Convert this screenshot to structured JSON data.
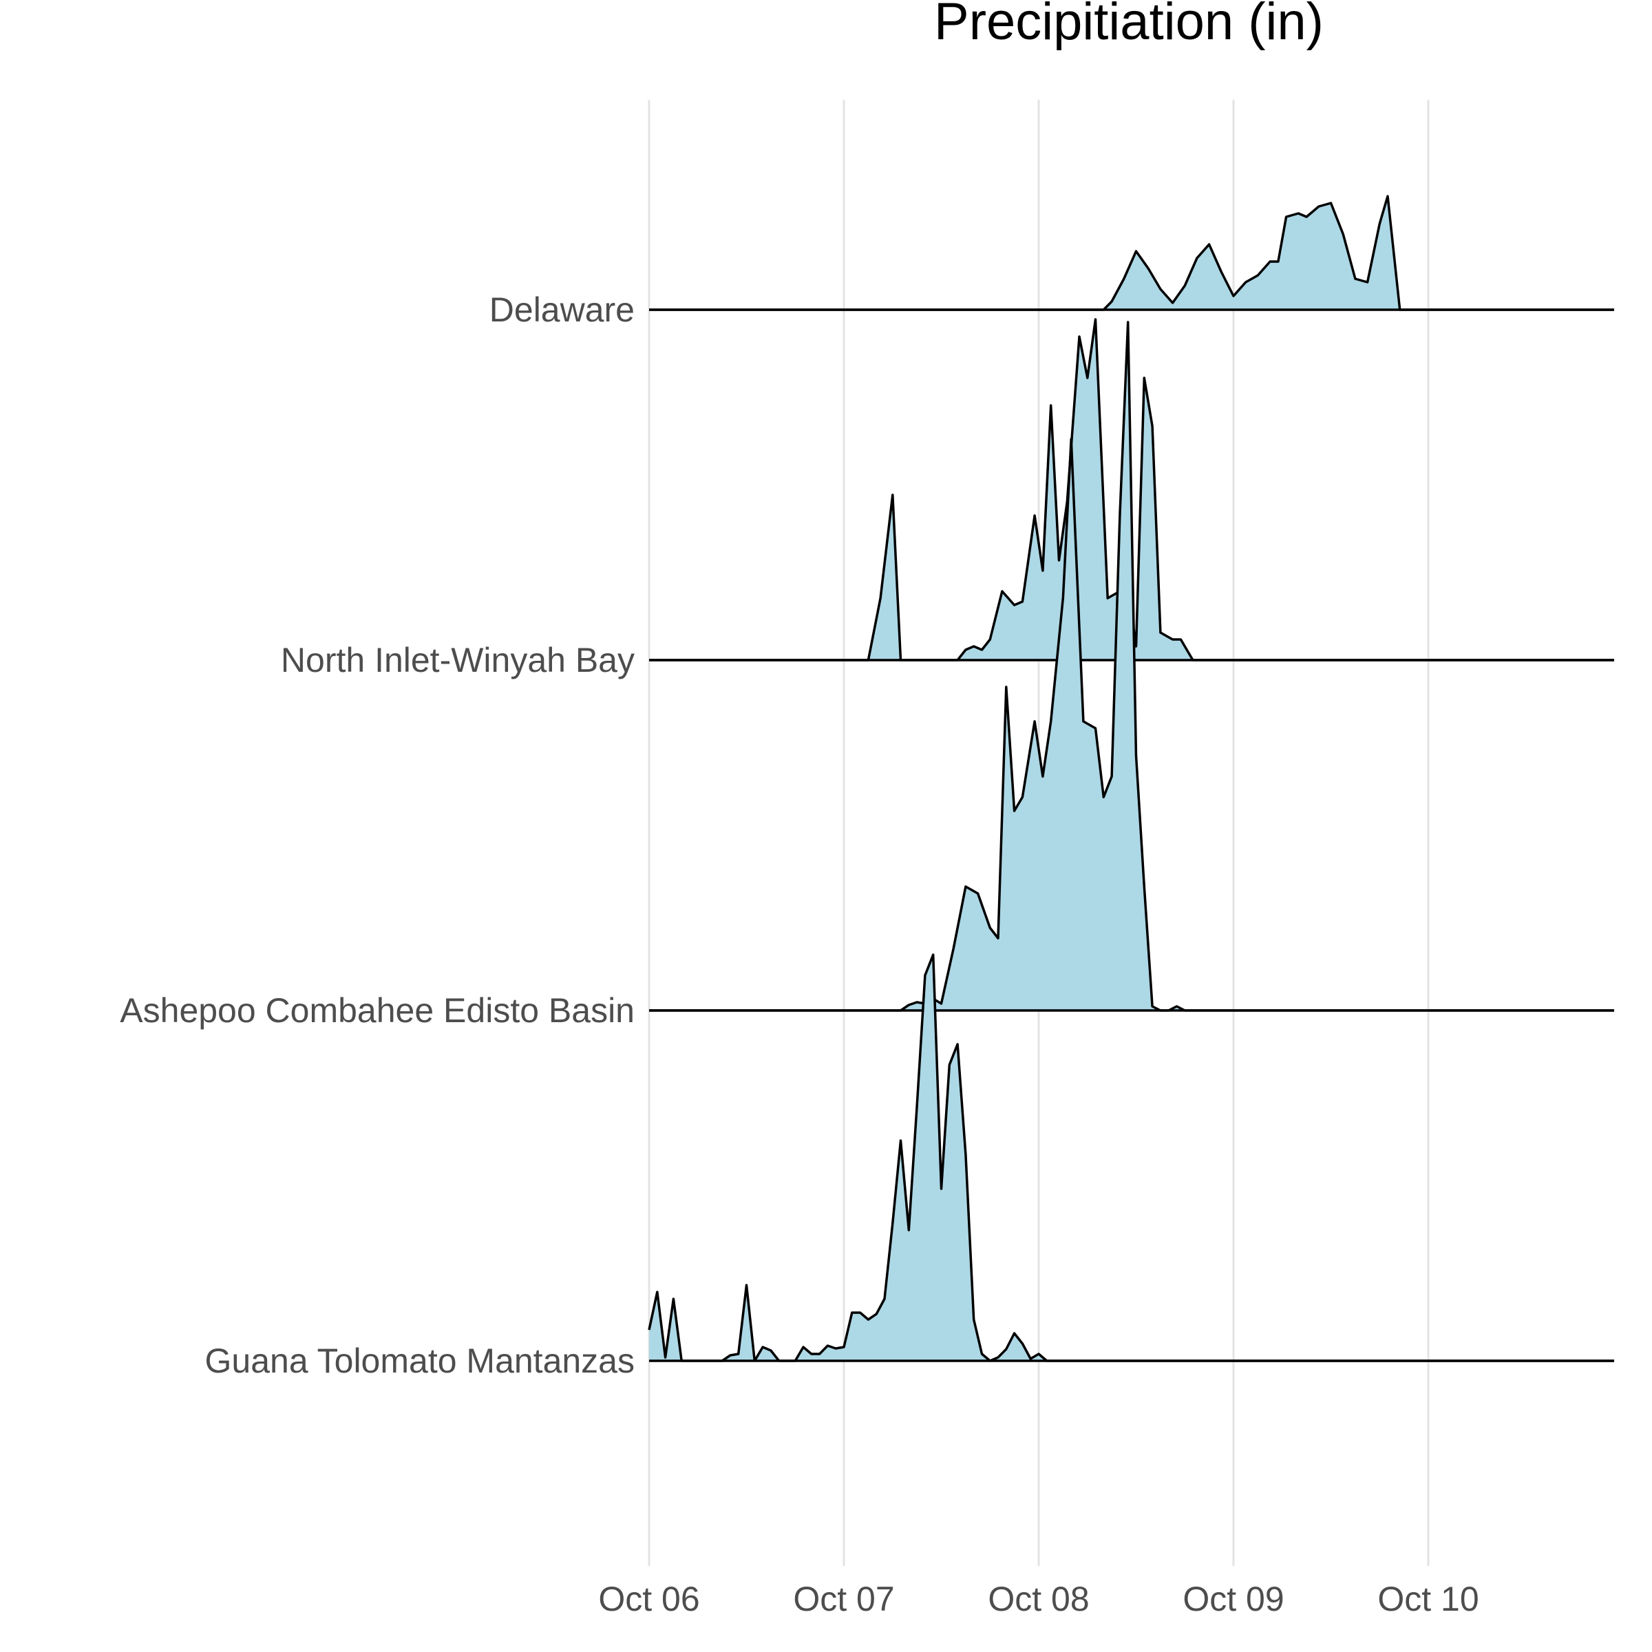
{
  "chart_data": {
    "type": "area",
    "title": "Precipitiation (in)",
    "xlabel": "",
    "ylabel": "",
    "fill_color": "#add8e6",
    "line_color": "#000000",
    "grid": "vertical",
    "x_ticks": [
      "Oct 06",
      "Oct 07",
      "Oct 08",
      "Oct 09",
      "Oct 10"
    ],
    "x_range_days": [
      "Oct 06 00:00",
      "Oct 10 23:00"
    ],
    "series": [
      {
        "name": "Delaware",
        "points": [
          [
            "Oct 06 00:00",
            0
          ],
          [
            "Oct 08 08:00",
            0
          ],
          [
            "Oct 08 09:00",
            0.012
          ],
          [
            "Oct 08 10:30",
            0.045
          ],
          [
            "Oct 08 12:00",
            0.085
          ],
          [
            "Oct 08 13:30",
            0.06
          ],
          [
            "Oct 08 15:00",
            0.03
          ],
          [
            "Oct 08 16:30",
            0.01
          ],
          [
            "Oct 08 18:00",
            0.035
          ],
          [
            "Oct 08 19:30",
            0.075
          ],
          [
            "Oct 08 21:00",
            0.095
          ],
          [
            "Oct 08 22:30",
            0.055
          ],
          [
            "Oct 09 00:00",
            0.02
          ],
          [
            "Oct 09 01:30",
            0.04
          ],
          [
            "Oct 09 03:00",
            0.05
          ],
          [
            "Oct 09 04:30",
            0.07
          ],
          [
            "Oct 09 05:30",
            0.07
          ],
          [
            "Oct 09 06:30",
            0.135
          ],
          [
            "Oct 09 08:00",
            0.14
          ],
          [
            "Oct 09 09:00",
            0.135
          ],
          [
            "Oct 09 10:30",
            0.15
          ],
          [
            "Oct 09 12:00",
            0.155
          ],
          [
            "Oct 09 13:30",
            0.11
          ],
          [
            "Oct 09 15:00",
            0.045
          ],
          [
            "Oct 09 16:30",
            0.04
          ],
          [
            "Oct 09 18:00",
            0.125
          ],
          [
            "Oct 09 19:00",
            0.165
          ],
          [
            "Oct 09 20:30",
            0
          ],
          [
            "Oct 10 23:00",
            0
          ]
        ]
      },
      {
        "name": "North Inlet-Winyah Bay",
        "points": [
          [
            "Oct 06 00:00",
            0
          ],
          [
            "Oct 07 03:00",
            0
          ],
          [
            "Oct 07 04:30",
            0.09
          ],
          [
            "Oct 07 06:00",
            0.24
          ],
          [
            "Oct 07 07:00",
            0
          ],
          [
            "Oct 07 14:00",
            0
          ],
          [
            "Oct 07 15:00",
            0.015
          ],
          [
            "Oct 07 16:00",
            0.02
          ],
          [
            "Oct 07 17:00",
            0.015
          ],
          [
            "Oct 07 18:00",
            0.03
          ],
          [
            "Oct 07 19:30",
            0.1
          ],
          [
            "Oct 07 21:00",
            0.08
          ],
          [
            "Oct 07 22:00",
            0.085
          ],
          [
            "Oct 07 23:30",
            0.21
          ],
          [
            "Oct 08 00:30",
            0.13
          ],
          [
            "Oct 08 01:30",
            0.37
          ],
          [
            "Oct 08 02:30",
            0.145
          ],
          [
            "Oct 08 03:30",
            0.23
          ],
          [
            "Oct 08 05:00",
            0.47
          ],
          [
            "Oct 08 06:00",
            0.41
          ],
          [
            "Oct 08 07:00",
            0.495
          ],
          [
            "Oct 08 08:30",
            0.09
          ],
          [
            "Oct 08 10:00",
            0.1
          ],
          [
            "Oct 08 11:00",
            0.105
          ],
          [
            "Oct 08 12:00",
            0.02
          ],
          [
            "Oct 08 13:00",
            0.41
          ],
          [
            "Oct 08 14:00",
            0.34
          ],
          [
            "Oct 08 15:00",
            0.04
          ],
          [
            "Oct 08 16:30",
            0.03
          ],
          [
            "Oct 08 17:30",
            0.03
          ],
          [
            "Oct 08 19:00",
            0
          ],
          [
            "Oct 10 23:00",
            0
          ]
        ]
      },
      {
        "name": "Ashepoo Combahee Edisto Basin",
        "points": [
          [
            "Oct 06 00:00",
            0
          ],
          [
            "Oct 07 07:00",
            0
          ],
          [
            "Oct 07 08:00",
            0.008
          ],
          [
            "Oct 07 09:00",
            0.012
          ],
          [
            "Oct 07 10:00",
            0.01
          ],
          [
            "Oct 07 11:00",
            0.017
          ],
          [
            "Oct 07 12:00",
            0.01
          ],
          [
            "Oct 07 13:30",
            0.09
          ],
          [
            "Oct 07 15:00",
            0.18
          ],
          [
            "Oct 07 16:30",
            0.17
          ],
          [
            "Oct 07 18:00",
            0.12
          ],
          [
            "Oct 07 19:00",
            0.105
          ],
          [
            "Oct 07 20:00",
            0.47
          ],
          [
            "Oct 07 21:00",
            0.29
          ],
          [
            "Oct 07 22:00",
            0.31
          ],
          [
            "Oct 07 23:30",
            0.42
          ],
          [
            "Oct 08 00:30",
            0.34
          ],
          [
            "Oct 08 01:30",
            0.42
          ],
          [
            "Oct 08 03:00",
            0.6
          ],
          [
            "Oct 08 04:00",
            0.83
          ],
          [
            "Oct 08 05:30",
            0.42
          ],
          [
            "Oct 08 07:00",
            0.41
          ],
          [
            "Oct 08 08:00",
            0.31
          ],
          [
            "Oct 08 09:00",
            0.34
          ],
          [
            "Oct 08 10:00",
            0.72
          ],
          [
            "Oct 08 11:00",
            1.0
          ],
          [
            "Oct 08 12:00",
            0.37
          ],
          [
            "Oct 08 13:00",
            0.18
          ],
          [
            "Oct 08 14:00",
            0.006
          ],
          [
            "Oct 08 15:00",
            0
          ],
          [
            "Oct 08 16:00",
            0
          ],
          [
            "Oct 08 17:00",
            0.006
          ],
          [
            "Oct 08 18:00",
            0
          ],
          [
            "Oct 10 23:00",
            0
          ]
        ]
      },
      {
        "name": "Guana Tolomato Mantanzas",
        "points": [
          [
            "Oct 06 00:00",
            0.045
          ],
          [
            "Oct 06 01:00",
            0.1
          ],
          [
            "Oct 06 02:00",
            0.005
          ],
          [
            "Oct 06 03:00",
            0.09
          ],
          [
            "Oct 06 04:00",
            0
          ],
          [
            "Oct 06 09:00",
            0
          ],
          [
            "Oct 06 10:00",
            0.008
          ],
          [
            "Oct 06 11:00",
            0.01
          ],
          [
            "Oct 06 12:00",
            0.11
          ],
          [
            "Oct 06 13:00",
            0
          ],
          [
            "Oct 06 14:00",
            0.02
          ],
          [
            "Oct 06 15:00",
            0.015
          ],
          [
            "Oct 06 16:00",
            0
          ],
          [
            "Oct 06 18:00",
            0
          ],
          [
            "Oct 06 19:00",
            0.02
          ],
          [
            "Oct 06 20:00",
            0.01
          ],
          [
            "Oct 06 21:00",
            0.01
          ],
          [
            "Oct 06 22:00",
            0.022
          ],
          [
            "Oct 06 23:00",
            0.018
          ],
          [
            "Oct 07 00:00",
            0.02
          ],
          [
            "Oct 07 01:00",
            0.07
          ],
          [
            "Oct 07 02:00",
            0.07
          ],
          [
            "Oct 07 03:00",
            0.06
          ],
          [
            "Oct 07 04:00",
            0.068
          ],
          [
            "Oct 07 05:00",
            0.09
          ],
          [
            "Oct 07 06:00",
            0.2
          ],
          [
            "Oct 07 07:00",
            0.32
          ],
          [
            "Oct 07 08:00",
            0.19
          ],
          [
            "Oct 07 09:00",
            0.37
          ],
          [
            "Oct 07 10:00",
            0.56
          ],
          [
            "Oct 07 11:00",
            0.59
          ],
          [
            "Oct 07 12:00",
            0.25
          ],
          [
            "Oct 07 13:00",
            0.43
          ],
          [
            "Oct 07 14:00",
            0.46
          ],
          [
            "Oct 07 15:00",
            0.3
          ],
          [
            "Oct 07 16:00",
            0.06
          ],
          [
            "Oct 07 17:00",
            0.01
          ],
          [
            "Oct 07 18:00",
            0
          ],
          [
            "Oct 07 19:00",
            0.005
          ],
          [
            "Oct 07 20:00",
            0.017
          ],
          [
            "Oct 07 21:00",
            0.04
          ],
          [
            "Oct 07 22:00",
            0.025
          ],
          [
            "Oct 07 23:00",
            0.003
          ],
          [
            "Oct 08 00:00",
            0.01
          ],
          [
            "Oct 08 01:00",
            0
          ],
          [
            "Oct 10 23:00",
            0
          ]
        ]
      }
    ]
  }
}
